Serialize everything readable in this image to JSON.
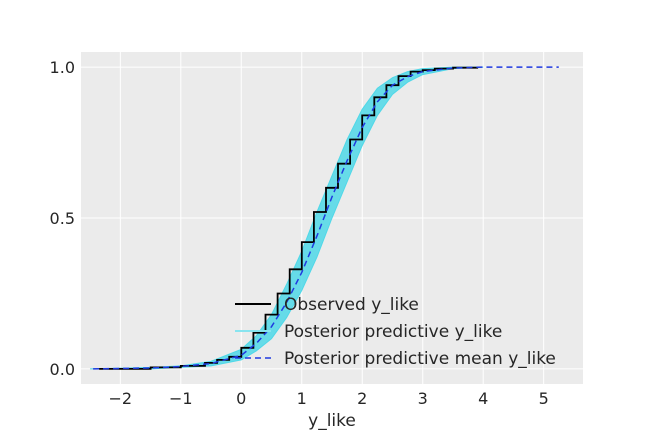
{
  "chart_data": {
    "type": "line",
    "title": "",
    "xlabel": "y_like",
    "ylabel": "",
    "xlim": [
      -2.65,
      5.65
    ],
    "ylim": [
      -0.05,
      1.05
    ],
    "x_ticks": [
      -2,
      -1,
      0,
      1,
      2,
      3,
      4,
      5
    ],
    "x_tick_labels": [
      "−2",
      "−1",
      "0",
      "1",
      "2",
      "3",
      "4",
      "5"
    ],
    "y_ticks": [
      0.0,
      0.5,
      1.0
    ],
    "y_tick_labels": [
      "0.0",
      "0.5",
      "1.0"
    ],
    "grid": true,
    "legend_position": "lower-center",
    "colors": {
      "background": "#ebebeb",
      "grid": "#ffffff",
      "observed": "#000000",
      "posterior_predictive": "#4fd8e8",
      "posterior_mean": "#1f3ae0"
    },
    "series": [
      {
        "name": "Observed y_like",
        "style": "step",
        "x": [
          -2.35,
          -1.5,
          -1.0,
          -0.6,
          -0.4,
          -0.2,
          0.0,
          0.2,
          0.4,
          0.6,
          0.8,
          1.0,
          1.2,
          1.4,
          1.6,
          1.8,
          2.0,
          2.2,
          2.4,
          2.6,
          2.8,
          3.0,
          3.2,
          3.5,
          3.9
        ],
        "y": [
          0.0,
          0.005,
          0.01,
          0.02,
          0.03,
          0.04,
          0.07,
          0.12,
          0.18,
          0.25,
          0.33,
          0.42,
          0.52,
          0.6,
          0.68,
          0.76,
          0.84,
          0.9,
          0.94,
          0.97,
          0.985,
          0.99,
          0.995,
          0.998,
          1.0
        ]
      },
      {
        "name": "Posterior predictive y_like",
        "style": "band",
        "x": [
          -2.5,
          -1.5,
          -1.0,
          -0.5,
          0.0,
          0.25,
          0.5,
          0.75,
          1.0,
          1.25,
          1.5,
          1.75,
          2.0,
          2.25,
          2.5,
          2.75,
          3.0,
          3.5,
          4.0
        ],
        "lower": [
          0.0,
          0.0,
          0.005,
          0.01,
          0.03,
          0.06,
          0.1,
          0.17,
          0.26,
          0.37,
          0.5,
          0.62,
          0.74,
          0.84,
          0.91,
          0.95,
          0.975,
          0.995,
          1.0
        ],
        "upper": [
          0.0,
          0.005,
          0.01,
          0.025,
          0.065,
          0.11,
          0.18,
          0.28,
          0.39,
          0.52,
          0.64,
          0.76,
          0.86,
          0.93,
          0.965,
          0.985,
          0.995,
          1.0,
          1.0
        ]
      },
      {
        "name": "Posterior predictive mean y_like",
        "style": "dashed",
        "x": [
          -2.45,
          -1.5,
          -1.0,
          -0.5,
          0.0,
          0.25,
          0.5,
          0.75,
          1.0,
          1.25,
          1.5,
          1.75,
          2.0,
          2.25,
          2.5,
          2.75,
          3.0,
          3.5,
          4.0,
          4.5,
          5.25
        ],
        "y": [
          0.0,
          0.003,
          0.008,
          0.018,
          0.045,
          0.085,
          0.14,
          0.22,
          0.32,
          0.44,
          0.57,
          0.69,
          0.8,
          0.885,
          0.94,
          0.968,
          0.985,
          0.997,
          1.0,
          1.0,
          1.0
        ]
      }
    ],
    "legend": [
      {
        "label": "Observed y_like",
        "style": "solid",
        "color": "#000000"
      },
      {
        "label": "Posterior predictive y_like",
        "style": "band",
        "color": "#88e4ef"
      },
      {
        "label": "Posterior predictive mean y_like",
        "style": "dashed",
        "color": "#1f3ae0"
      }
    ]
  }
}
